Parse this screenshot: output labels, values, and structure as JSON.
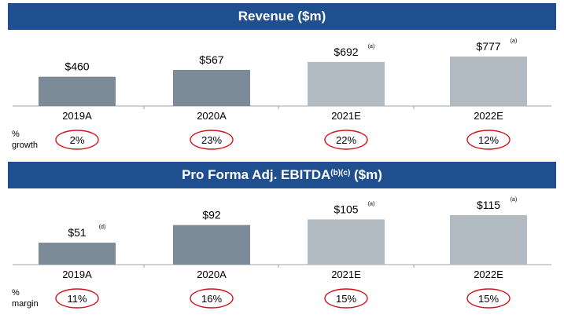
{
  "chart_data": [
    {
      "type": "bar",
      "title": "Revenue ($m)",
      "categories": [
        "2019A",
        "2020A",
        "2021E",
        "2022E"
      ],
      "values": [
        460,
        567,
        692,
        777
      ],
      "value_labels": [
        "$460",
        "$567",
        "$692",
        "$777"
      ],
      "value_notes": [
        "",
        "",
        "(a)",
        "(a)"
      ],
      "bar_colors": [
        "#7d8b98",
        "#7d8b98",
        "#b2bac2",
        "#b2bac2"
      ],
      "ylim": [
        0,
        777
      ],
      "metric": {
        "label_line1": "%",
        "label_line2": "growth",
        "values": [
          "2%",
          "23%",
          "22%",
          "12%"
        ]
      }
    },
    {
      "type": "bar",
      "title": "Pro Forma Adj. EBITDA",
      "title_sup": "(b)(c)",
      "title_suffix": " ($m)",
      "categories": [
        "2019A",
        "2020A",
        "2021E",
        "2022E"
      ],
      "values": [
        51,
        92,
        105,
        115
      ],
      "value_labels": [
        "$51",
        "$92",
        "$105",
        "$115"
      ],
      "value_notes": [
        "(d)",
        "",
        "(a)",
        "(a)"
      ],
      "bar_colors": [
        "#7d8b98",
        "#7d8b98",
        "#b2bac2",
        "#b2bac2"
      ],
      "ylim": [
        0,
        115
      ],
      "metric": {
        "label_line1": "%",
        "label_line2": "margin",
        "values": [
          "11%",
          "16%",
          "15%",
          "15%"
        ]
      }
    }
  ],
  "colors": {
    "header_bg": "#1f4f8f",
    "circle": "#d0141c",
    "axis": "#9aa3ab"
  }
}
